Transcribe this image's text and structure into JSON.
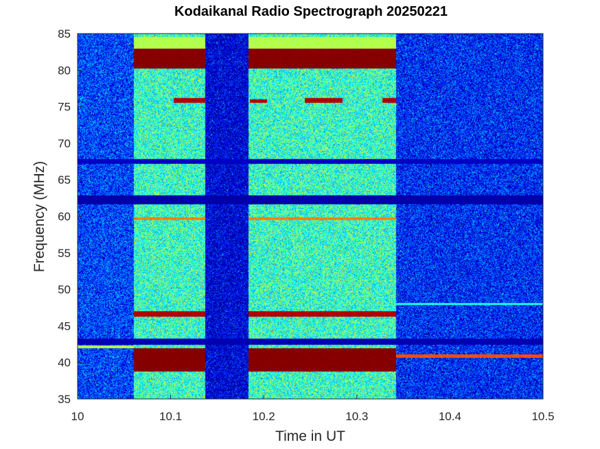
{
  "chart_data": {
    "type": "heatmap",
    "title": "Kodaikanal Radio Spectrograph  20250221",
    "xlabel": "Time in UT",
    "ylabel": "Frequency (MHz)",
    "xlim": [
      10,
      10.5
    ],
    "ylim": [
      35,
      85
    ],
    "x_ticks": [
      "10",
      "10.1",
      "10.2",
      "10.3",
      "10.4",
      "10.5"
    ],
    "x_tick_values": [
      10,
      10.1,
      10.2,
      10.3,
      10.4,
      10.5
    ],
    "y_ticks": [
      "35",
      "40",
      "45",
      "50",
      "55",
      "60",
      "65",
      "70",
      "75",
      "80",
      "85"
    ],
    "y_tick_values": [
      35,
      40,
      45,
      50,
      55,
      60,
      65,
      70,
      75,
      80,
      85
    ],
    "colormap": [
      "#00008f",
      "#0000ff",
      "#0080ff",
      "#00ffff",
      "#80ff80",
      "#ffff00",
      "#ff8000",
      "#ff0000",
      "#800000"
    ],
    "segments": [
      {
        "start": 10.0,
        "end": 10.06,
        "level": 0.18
      },
      {
        "start": 10.06,
        "end": 10.137,
        "level": 0.42
      },
      {
        "start": 10.137,
        "end": 10.183,
        "level": 0.08
      },
      {
        "start": 10.183,
        "end": 10.342,
        "level": 0.42
      },
      {
        "start": 10.342,
        "end": 10.5,
        "level": 0.15
      }
    ],
    "bands": [
      {
        "t0": 10.06,
        "t1": 10.137,
        "f0": 80.3,
        "f1": 83.0,
        "level": 1.0
      },
      {
        "t0": 10.183,
        "t1": 10.342,
        "f0": 80.3,
        "f1": 83.0,
        "level": 1.0
      },
      {
        "t0": 10.06,
        "t1": 10.137,
        "f0": 83.0,
        "f1": 84.6,
        "level": 0.55
      },
      {
        "t0": 10.183,
        "t1": 10.342,
        "f0": 83.0,
        "f1": 84.6,
        "level": 0.55
      },
      {
        "t0": 10.06,
        "t1": 10.137,
        "f0": 38.8,
        "f1": 42.0,
        "level": 1.0
      },
      {
        "t0": 10.183,
        "t1": 10.342,
        "f0": 38.8,
        "f1": 42.0,
        "level": 1.0
      },
      {
        "t0": 10.06,
        "t1": 10.137,
        "f0": 46.3,
        "f1": 47.1,
        "level": 0.95
      },
      {
        "t0": 10.183,
        "t1": 10.342,
        "f0": 46.3,
        "f1": 47.1,
        "level": 0.95
      },
      {
        "t0": 10.06,
        "t1": 10.137,
        "f0": 59.5,
        "f1": 59.9,
        "level": 0.75
      },
      {
        "t0": 10.183,
        "t1": 10.342,
        "f0": 59.5,
        "f1": 59.9,
        "level": 0.75
      },
      {
        "t0": 10.103,
        "t1": 10.137,
        "f0": 75.6,
        "f1": 76.2,
        "level": 0.95
      },
      {
        "t0": 10.185,
        "t1": 10.203,
        "f0": 75.6,
        "f1": 76.0,
        "level": 0.95
      },
      {
        "t0": 10.244,
        "t1": 10.284,
        "f0": 75.6,
        "f1": 76.2,
        "level": 0.95
      },
      {
        "t0": 10.327,
        "t1": 10.342,
        "f0": 75.6,
        "f1": 76.2,
        "level": 0.95
      },
      {
        "t0": 10.342,
        "t1": 10.5,
        "f0": 40.7,
        "f1": 41.1,
        "level": 0.8
      },
      {
        "t0": 10.0,
        "t1": 10.06,
        "f0": 42.0,
        "f1": 42.4,
        "level": 0.55
      },
      {
        "t0": 10.342,
        "t1": 10.5,
        "f0": 47.9,
        "f1": 48.2,
        "level": 0.4
      },
      {
        "t0": 10.0,
        "t1": 10.5,
        "f0": 42.5,
        "f1": 43.3,
        "level": 0.04
      },
      {
        "t0": 10.0,
        "t1": 10.5,
        "f0": 61.7,
        "f1": 62.9,
        "level": 0.03
      },
      {
        "t0": 10.0,
        "t1": 10.5,
        "f0": 67.2,
        "f1": 67.9,
        "level": 0.06
      }
    ]
  }
}
